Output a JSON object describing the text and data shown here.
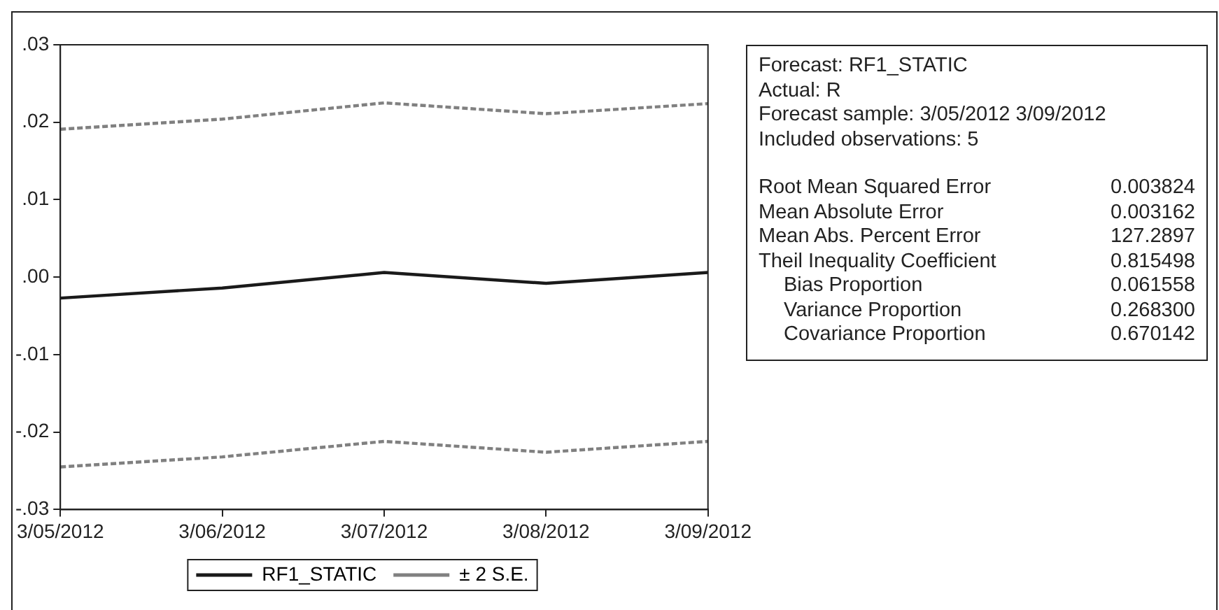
{
  "chart_data": {
    "type": "line",
    "categories": [
      "3/05/2012",
      "3/06/2012",
      "3/07/2012",
      "3/08/2012",
      "3/09/2012"
    ],
    "series": [
      {
        "name": "RF1_STATIC",
        "color": "#1a1a1a",
        "line_style": "solid",
        "values": [
          -0.0027,
          -0.0014,
          0.0006,
          -0.0008,
          0.0006
        ]
      },
      {
        "name": "± 2 S.E.",
        "color": "#808080",
        "line_style": "dashed",
        "values": [
          0.0191,
          0.0204,
          0.0225,
          0.0211,
          0.0224
        ]
      },
      {
        "color": "#808080",
        "line_style": "dashed",
        "values": [
          -0.0245,
          -0.0232,
          -0.0212,
          -0.0226,
          -0.0212
        ]
      }
    ],
    "ylim": [
      -0.03,
      0.03
    ],
    "yticks": [
      {
        "value": -0.03,
        "label": "-.03"
      },
      {
        "value": -0.02,
        "label": "-.02"
      },
      {
        "value": -0.01,
        "label": "-.01"
      },
      {
        "value": 0,
        "label": ".00"
      },
      {
        "value": 0.01,
        "label": ".01"
      },
      {
        "value": 0.02,
        "label": ".02"
      },
      {
        "value": 0.03,
        "label": ".03"
      }
    ],
    "grid": false,
    "legend": "bottom",
    "marker": "none",
    "annotations": [
      "Forecast: RF1_STATIC",
      "Actual: R",
      "Forecast sample: 3/05/2012 3/09/2012",
      "Included observations: 5",
      "Root Mean Squared Error",
      "0.003824",
      "Mean Absolute Error",
      "0.003162",
      "Mean Abs. Percent Error",
      "127.2897",
      "Theil Inequality Coefficient",
      "0.815498",
      "Bias Proportion",
      "0.061558",
      "Variance Proportion",
      "0.268300",
      "Covariance Proportion",
      "0.670142"
    ]
  }
}
